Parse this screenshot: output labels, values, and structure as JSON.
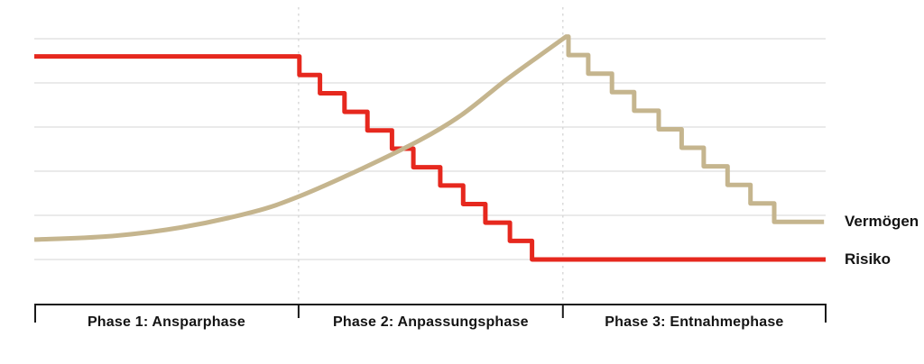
{
  "chart_data": {
    "type": "line",
    "title": "",
    "value_units": "relative level 0-100 (chart shows no numeric axis labels)",
    "legend_position": "right",
    "colors": {
      "gridline": "#e4e4e4",
      "phase_divider": "#d4d4d4",
      "axis": "#1a1a1a",
      "background": "#ffffff",
      "vermoegen": "#c5b58e",
      "risiko": "#e6281e"
    },
    "y_axis": {
      "label": "",
      "min": 0,
      "max": 100,
      "gridlines": [
        0,
        20,
        40,
        60,
        80,
        100
      ]
    },
    "x_axis": {
      "label": "",
      "phases": [
        {
          "label": "Phase 1: Ansparphase",
          "x_start": 0,
          "x_end": 33.4
        },
        {
          "label": "Phase 2: Anpassungsphase",
          "x_start": 33.4,
          "x_end": 66.8
        },
        {
          "label": "Phase 3: Entnahmephase",
          "x_start": 66.8,
          "x_end": 100
        }
      ]
    },
    "series": [
      {
        "name": "Vermögen",
        "color": "#c5b58e",
        "shape": "smooth exponential growth through Phase 1 and 2, peak at Phase 3 start, then stepwise decline",
        "end_level": 17,
        "curve_points": [
          [
            0,
            9
          ],
          [
            9.4,
            10.5
          ],
          [
            18.5,
            14.5
          ],
          [
            27.6,
            21.5
          ],
          [
            33.4,
            28.5
          ],
          [
            41.3,
            41
          ],
          [
            48.7,
            54
          ],
          [
            54,
            65.5
          ],
          [
            59.5,
            81
          ],
          [
            64.1,
            93
          ],
          [
            67.2,
            101
          ]
        ],
        "step_points": [
          [
            67.5,
            101
          ],
          [
            67.5,
            92.6
          ],
          [
            70,
            92.6
          ],
          [
            70,
            84.2
          ],
          [
            73,
            84.2
          ],
          [
            73,
            75.8
          ],
          [
            75.8,
            75.8
          ],
          [
            75.8,
            67.4
          ],
          [
            78.9,
            67.4
          ],
          [
            78.9,
            59
          ],
          [
            81.8,
            59
          ],
          [
            81.8,
            50.6
          ],
          [
            84.6,
            50.6
          ],
          [
            84.6,
            42.2
          ],
          [
            87.6,
            42.2
          ],
          [
            87.6,
            33.8
          ],
          [
            90.5,
            33.8
          ],
          [
            90.5,
            25.4
          ],
          [
            93.5,
            25.4
          ],
          [
            93.5,
            17
          ],
          [
            99.8,
            17
          ]
        ]
      },
      {
        "name": "Risiko",
        "color": "#e6281e",
        "shape": "constant high level in Phase 1, stepwise decline through Phase 2, constant low level in Phase 3",
        "end_level": 0,
        "points": [
          [
            0,
            92
          ],
          [
            33.5,
            92
          ],
          [
            33.5,
            83.6
          ],
          [
            36.1,
            83.6
          ],
          [
            36.1,
            75.3
          ],
          [
            39.2,
            75.3
          ],
          [
            39.2,
            66.9
          ],
          [
            42.1,
            66.9
          ],
          [
            42.1,
            58.5
          ],
          [
            45.2,
            58.5
          ],
          [
            45.2,
            50.2
          ],
          [
            47.9,
            50.2
          ],
          [
            47.9,
            41.8
          ],
          [
            51.3,
            41.8
          ],
          [
            51.3,
            33.5
          ],
          [
            54.2,
            33.5
          ],
          [
            54.2,
            25.1
          ],
          [
            57,
            25.1
          ],
          [
            57,
            16.7
          ],
          [
            60.1,
            16.7
          ],
          [
            60.1,
            8.4
          ],
          [
            62.9,
            8.4
          ],
          [
            62.9,
            0
          ],
          [
            100,
            0
          ]
        ]
      }
    ]
  }
}
